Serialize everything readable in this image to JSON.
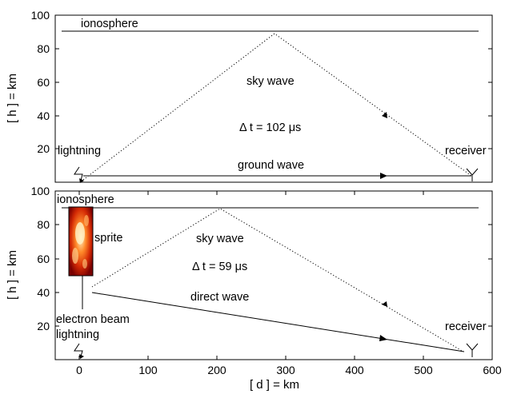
{
  "colors": {
    "line": "#000000",
    "background": "#ffffff",
    "sprite_dark": "#7a0000",
    "sprite_bright": "#fff3c8"
  },
  "top_panel": {
    "ylabel": "[ h ] = km",
    "y_ticks": [
      "20",
      "40",
      "60",
      "80",
      "100"
    ],
    "annotations": {
      "ionosphere": "ionosphere",
      "sky_wave": "sky wave",
      "delta_t": "Δ t = 102 μs",
      "lightning": "lightning",
      "ground_wave": "ground wave",
      "receiver": "receiver"
    }
  },
  "bottom_panel": {
    "ylabel": "[ h ] = km",
    "xlabel": "[ d ] = km",
    "y_ticks": [
      "20",
      "40",
      "60",
      "80",
      "100"
    ],
    "x_ticks": [
      "0",
      "100",
      "200",
      "300",
      "400",
      "500",
      "600"
    ],
    "annotations": {
      "ionosphere": "ionosphere",
      "sprite": "sprite",
      "sky_wave": "sky wave",
      "delta_t": "Δ t = 59 μs",
      "direct_wave": "direct wave",
      "electron_beam": "electron beam",
      "lightning": "lightning",
      "receiver": "receiver"
    }
  }
}
